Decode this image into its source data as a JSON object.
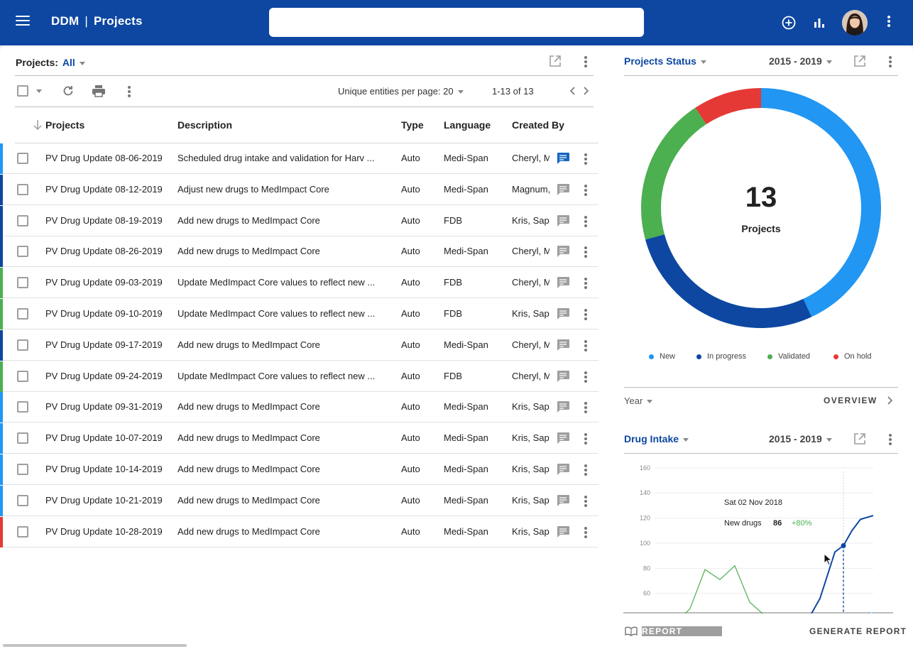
{
  "appbar": {
    "brand": "DDM",
    "separator": "|",
    "page": "Projects",
    "search_placeholder": "",
    "icons": [
      "menu-icon",
      "add-circle-icon",
      "bar-chart-icon",
      "avatar",
      "more-vert-icon"
    ]
  },
  "projects_panel": {
    "filter_label": "Projects:",
    "filter_value": "All",
    "per_page_label": "Unique entities per page: 20",
    "range_label": "1-13 of 13",
    "columns": [
      "Projects",
      "Description",
      "Type",
      "Language",
      "Created By"
    ],
    "rows": [
      {
        "status": "#2196f3",
        "project": "PV Drug Update  08-06-2019",
        "description": "Scheduled drug intake and validation for Harv ...",
        "type": "Auto",
        "language": "Medi-Span",
        "created_by": "Cheryl, M",
        "has_comment": true
      },
      {
        "status": "#0d47a1",
        "project": "PV Drug Update  08-12-2019",
        "description": "Adjust new drugs to MedImpact Core",
        "type": "Auto",
        "language": "Medi-Span",
        "created_by": "Magnum,",
        "has_comment": false
      },
      {
        "status": "#0d47a1",
        "project": "PV Drug Update  08-19-2019",
        "description": "Add new drugs to MedImpact Core",
        "type": "Auto",
        "language": "FDB",
        "created_by": "Kris, Sapu",
        "has_comment": false
      },
      {
        "status": "#0d47a1",
        "project": "PV Drug Update  08-26-2019",
        "description": "Add new drugs to MedImpact Core",
        "type": "Auto",
        "language": "Medi-Span",
        "created_by": "Cheryl, M",
        "has_comment": false
      },
      {
        "status": "#4caf50",
        "project": "PV Drug Update  09-03-2019",
        "description": "Update MedImpact Core values to reflect new ...",
        "type": "Auto",
        "language": "FDB",
        "created_by": "Cheryl, M",
        "has_comment": false
      },
      {
        "status": "#4caf50",
        "project": "PV Drug Update  09-10-2019",
        "description": "Update MedImpact Core values to reflect new ...",
        "type": "Auto",
        "language": "FDB",
        "created_by": "Kris, Sapu",
        "has_comment": false
      },
      {
        "status": "#0d47a1",
        "project": "PV Drug Update  09-17-2019",
        "description": "Add new drugs to MedImpact Core",
        "type": "Auto",
        "language": "Medi-Span",
        "created_by": "Cheryl, M",
        "has_comment": false
      },
      {
        "status": "#4caf50",
        "project": "PV Drug Update  09-24-2019",
        "description": "Update MedImpact Core values to reflect new ...",
        "type": "Auto",
        "language": "FDB",
        "created_by": "Cheryl, M",
        "has_comment": false
      },
      {
        "status": "#2196f3",
        "project": "PV Drug Update  09-31-2019",
        "description": "Add new drugs to MedImpact Core",
        "type": "Auto",
        "language": "Medi-Span",
        "created_by": "Kris, Sapu",
        "has_comment": false
      },
      {
        "status": "#2196f3",
        "project": "PV Drug Update  10-07-2019",
        "description": "Add new drugs to MedImpact Core",
        "type": "Auto",
        "language": "Medi-Span",
        "created_by": "Kris, Sapu",
        "has_comment": false
      },
      {
        "status": "#2196f3",
        "project": "PV Drug Update  10-14-2019",
        "description": "Add new drugs to MedImpact Core",
        "type": "Auto",
        "language": "Medi-Span",
        "created_by": "Kris, Sapu",
        "has_comment": false
      },
      {
        "status": "#2196f3",
        "project": "PV Drug Update  10-21-2019",
        "description": "Add new drugs to MedImpact Core",
        "type": "Auto",
        "language": "Medi-Span",
        "created_by": "Kris, Sapu",
        "has_comment": false
      },
      {
        "status": "#e53935",
        "project": "PV Drug Update  10-28-2019",
        "description": "Add new drugs to MedImpact Core",
        "type": "Auto",
        "language": "Medi-Span",
        "created_by": "Kris, Sapu",
        "has_comment": false
      }
    ]
  },
  "status_panel": {
    "title": "Projects Status",
    "year_range": "2015 - 2019",
    "total": "13",
    "total_label": "Projects",
    "year_filter": "Year",
    "overview_link": "OVERVIEW"
  },
  "intake_panel": {
    "title": "Drug Intake",
    "year_range": "2015 - 2019",
    "tooltip": {
      "date": "Sat 02 Nov 2018",
      "label": "New drugs",
      "value": "86",
      "change": "+80%"
    }
  },
  "footer": {
    "report_label": "REPORT",
    "generate_label": "GENERATE REPORT"
  },
  "colors": {
    "primary": "#0d47a1",
    "new": "#2196f3",
    "in_progress": "#0d47a1",
    "validated": "#4caf50",
    "on_hold": "#e53935"
  },
  "chart_data": [
    {
      "type": "pie",
      "title": "Projects Status",
      "categories": [
        "New",
        "In progress",
        "Validated",
        "On hold"
      ],
      "values": [
        5.6,
        3.6,
        2.6,
        1.2
      ],
      "legend": "bottom"
    },
    {
      "type": "line",
      "title": "Drug Intake",
      "y_ticks": [
        60,
        80,
        100,
        120,
        140,
        160
      ],
      "ylim": [
        44,
        165
      ],
      "grid": true,
      "series": [
        {
          "name": "New drugs",
          "color": "#0d47a1",
          "points": [
            [
              0.71,
              44
            ],
            [
              0.75,
              56
            ],
            [
              0.82,
              93
            ],
            [
              0.86,
              98
            ],
            [
              0.9,
              110
            ],
            [
              0.94,
              119
            ],
            [
              1.0,
              122
            ]
          ]
        },
        {
          "color": "#4caf50",
          "points": [
            [
              0.0,
              39
            ],
            [
              0.05,
              42
            ],
            [
              0.09,
              39
            ],
            [
              0.14,
              48
            ],
            [
              0.21,
              79
            ],
            [
              0.28,
              71
            ],
            [
              0.35,
              82
            ],
            [
              0.42,
              53
            ],
            [
              0.48,
              44
            ],
            [
              0.51,
              41
            ]
          ]
        },
        {
          "color": "#90caf9",
          "points": [
            [
              0.93,
              41
            ],
            [
              1.0,
              45
            ]
          ]
        }
      ],
      "highlight": {
        "x": 0.86,
        "y": 98
      }
    }
  ]
}
